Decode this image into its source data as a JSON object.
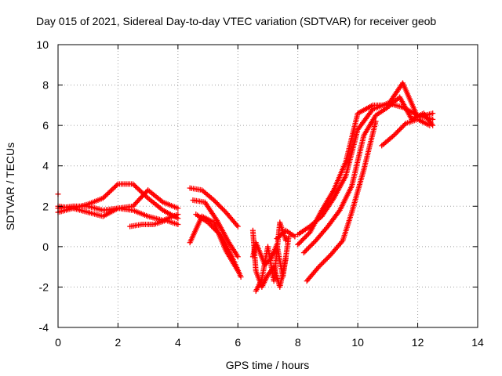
{
  "chart_data": {
    "type": "scatter",
    "title": "Day 015 of 2021, Sidereal Day-to-day VTEC variation (SDTVAR) for receiver geob",
    "xlabel": "GPS time / hours",
    "ylabel": "SDTVAR / TECUs",
    "xlim": [
      0,
      14
    ],
    "ylim": [
      -4,
      10
    ],
    "xticks": [
      "0",
      "2",
      "4",
      "6",
      "8",
      "10",
      "12",
      "14"
    ],
    "yticks": [
      "-4",
      "-2",
      "0",
      "2",
      "4",
      "6",
      "8",
      "10"
    ],
    "grid": true,
    "marker": "+",
    "color": "#ff0000",
    "series": [
      {
        "x": [
          0.0,
          0.5,
          1.0,
          1.5,
          2.0,
          2.5,
          3.0,
          3.5,
          4.0
        ],
        "y": [
          1.7,
          1.9,
          2.1,
          2.4,
          3.1,
          3.1,
          2.4,
          1.8,
          1.4
        ]
      },
      {
        "x": [
          0.0,
          0.5,
          1.0,
          1.5,
          2.0,
          2.5,
          3.0,
          3.5,
          4.0
        ],
        "y": [
          1.9,
          2.0,
          2.0,
          1.8,
          1.9,
          2.0,
          2.8,
          2.2,
          1.9
        ]
      },
      {
        "x": [
          0.0,
          0.5,
          1.0,
          1.5,
          2.0,
          2.5,
          3.0,
          3.5,
          4.0
        ],
        "y": [
          2.0,
          1.9,
          1.7,
          1.5,
          1.9,
          1.8,
          1.5,
          1.3,
          1.6
        ]
      },
      {
        "x": [
          2.4,
          2.8,
          3.2,
          3.6,
          4.0
        ],
        "y": [
          1.0,
          1.1,
          1.1,
          1.3,
          1.1
        ]
      },
      {
        "x": [
          4.4,
          4.8,
          5.2,
          5.6,
          6.0
        ],
        "y": [
          2.9,
          2.8,
          2.3,
          1.7,
          1.0
        ]
      },
      {
        "x": [
          4.5,
          4.9,
          5.3,
          5.7,
          6.0
        ],
        "y": [
          2.3,
          2.2,
          1.3,
          0.2,
          -0.5
        ]
      },
      {
        "x": [
          4.6,
          5.0,
          5.4,
          5.8,
          6.1
        ],
        "y": [
          1.6,
          1.2,
          0.6,
          -0.5,
          -1.5
        ]
      },
      {
        "x": [
          4.4,
          4.8,
          5.2,
          5.6,
          6.0
        ],
        "y": [
          0.2,
          1.5,
          1.2,
          -0.2,
          -1.2
        ]
      },
      {
        "x": [
          6.5,
          6.6,
          6.8,
          7.0,
          7.2,
          7.4,
          7.6
        ],
        "y": [
          0.8,
          -1.2,
          -2.0,
          -1.4,
          -1.0,
          -2.0,
          -0.6
        ]
      },
      {
        "x": [
          6.5,
          6.6,
          6.9,
          7.1,
          7.3,
          7.5,
          7.7
        ],
        "y": [
          -0.5,
          0.2,
          -0.9,
          -0.6,
          0.1,
          -1.5,
          0.5
        ]
      },
      {
        "x": [
          6.6,
          6.8,
          7.0,
          7.2,
          7.4,
          7.6
        ],
        "y": [
          -2.2,
          -1.6,
          0.0,
          -1.7,
          1.2,
          0.3
        ]
      },
      {
        "x": [
          8.0,
          8.4,
          8.8,
          9.2,
          9.6,
          10.0,
          10.5,
          11.0,
          11.5,
          12.0,
          12.5
        ],
        "y": [
          0.6,
          1.0,
          1.5,
          2.4,
          3.5,
          5.8,
          6.8,
          7.1,
          6.9,
          6.5,
          6.3
        ]
      },
      {
        "x": [
          8.0,
          8.4,
          8.8,
          9.2,
          9.6,
          10.0,
          10.5,
          11.0,
          11.5,
          12.0,
          12.5
        ],
        "y": [
          0.1,
          0.7,
          1.8,
          2.8,
          4.2,
          6.6,
          7.0,
          7.0,
          8.1,
          6.4,
          6.6
        ]
      },
      {
        "x": [
          8.2,
          8.6,
          9.0,
          9.4,
          9.8,
          10.2,
          10.6,
          11.0,
          11.4,
          11.8,
          12.2,
          12.5
        ],
        "y": [
          -0.3,
          0.3,
          1.0,
          1.8,
          3.0,
          5.5,
          6.5,
          6.9,
          7.4,
          6.3,
          6.6,
          6.0
        ]
      },
      {
        "x": [
          8.3,
          8.7,
          9.1,
          9.5,
          9.8,
          10.2,
          10.6
        ],
        "y": [
          -1.7,
          -1.0,
          -0.4,
          0.3,
          1.7,
          3.8,
          6.2
        ]
      },
      {
        "x": [
          10.8,
          11.2,
          11.6,
          12.0,
          12.4
        ],
        "y": [
          5.0,
          5.5,
          6.1,
          6.3,
          6.0
        ]
      },
      {
        "x": [
          0.0
        ],
        "y": [
          2.6
        ]
      },
      {
        "x": [
          7.3,
          7.6,
          7.9
        ],
        "y": [
          0.4,
          0.8,
          0.5
        ]
      }
    ]
  }
}
